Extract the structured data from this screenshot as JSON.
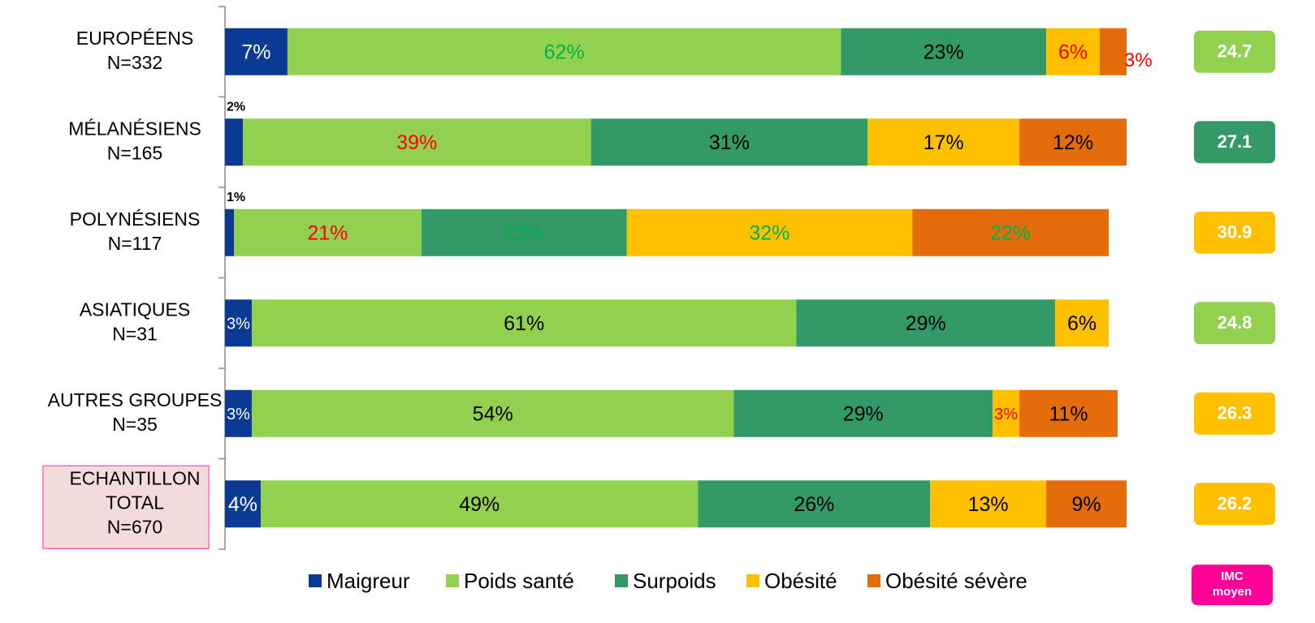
{
  "chart_data": {
    "type": "stacked-bar-horizontal",
    "categories": [
      [
        "EUROPÉENS",
        "N=332"
      ],
      [
        "MÉLANÉSIENS",
        "N=165"
      ],
      [
        "POLYNÉSIENS",
        "N=117"
      ],
      [
        "ASIATIQUES",
        "N=31"
      ],
      [
        "AUTRES GROUPES",
        "N=35"
      ],
      [
        "ECHANTILLON",
        "TOTAL",
        "N=670"
      ]
    ],
    "highlight_category": 5,
    "xlim": [
      0,
      100
    ],
    "series": [
      {
        "name": "Maigreur",
        "color": "#0b3a94",
        "values": [
          7,
          2,
          1,
          3,
          3,
          4
        ],
        "value_labels": [
          "7%",
          "2%",
          "1%",
          "3%",
          "3%",
          "4%"
        ],
        "label_colors": [
          "#ffffff",
          "#000000",
          "#000000",
          "#ffffff",
          "#ffffff",
          "#ffffff"
        ]
      },
      {
        "name": "Poids santé",
        "color": "#92d050",
        "values": [
          62,
          39,
          21,
          61,
          54,
          49
        ],
        "value_labels": [
          "62%",
          "39%",
          "21%",
          "61%",
          "54%",
          "49%"
        ],
        "label_colors": [
          "#00b050",
          "#ff0000",
          "#ff0000",
          "#000000",
          "#000000",
          "#000000"
        ]
      },
      {
        "name": "Surpoids",
        "color": "#339966",
        "values": [
          23,
          31,
          23,
          29,
          29,
          26
        ],
        "value_labels": [
          "23%",
          "31%",
          "23%",
          "29%",
          "29%",
          "26%"
        ],
        "label_colors": [
          "#000000",
          "#000000",
          "#00b050",
          "#000000",
          "#000000",
          "#000000"
        ]
      },
      {
        "name": "Obésité",
        "color": "#ffc000",
        "values": [
          6,
          17,
          32,
          6,
          3,
          13
        ],
        "value_labels": [
          "6%",
          "17%",
          "32%",
          "6%",
          "3%",
          "13%"
        ],
        "label_colors": [
          "#ff0000",
          "#000000",
          "#00b050",
          "#000000",
          "#ff0000",
          "#000000"
        ]
      },
      {
        "name": "Obésité sévère",
        "color": "#e46c0a",
        "values": [
          3,
          12,
          22,
          null,
          11,
          9
        ],
        "value_labels": [
          "3%",
          "12%",
          "22%",
          null,
          "11%",
          "9%"
        ],
        "label_colors": [
          "#ff0000",
          "#000000",
          "#00b050",
          null,
          "#000000",
          "#000000"
        ]
      }
    ],
    "imc": {
      "title": [
        "IMC",
        "moyen"
      ],
      "title_color": "#ff0099",
      "values": [
        24.7,
        27.1,
        30.9,
        24.8,
        26.3,
        26.2
      ],
      "colors": [
        "#92d050",
        "#339966",
        "#ffc000",
        "#92d050",
        "#ffc000",
        "#ffc000"
      ]
    }
  }
}
